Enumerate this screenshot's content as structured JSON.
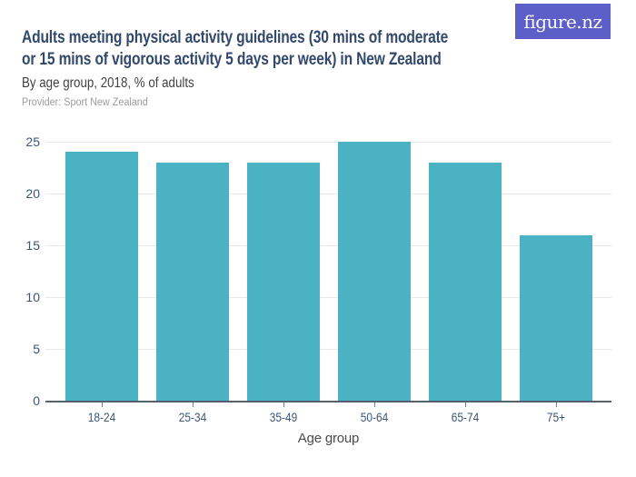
{
  "header": {
    "title_line1": "Adults meeting physical activity guidelines (30 mins of moderate",
    "title_line2": "or 15 mins of vigorous activity 5 days per week) in New Zealand",
    "subtitle": "By age group, 2018, % of adults",
    "provider": "Provider: Sport New Zealand",
    "logo_text": "figure.nz"
  },
  "colors": {
    "background": "#ffffff",
    "accent_bar": "#4bb2c3",
    "logo_background": "#5b5fc7",
    "logo_text": "#ffffff",
    "title_text": "#33496b",
    "subtitle_text": "#424242",
    "provider_text": "#9c9c9c",
    "axis_tick_text": "#3d5577",
    "xaxis_title_text": "#4a4a4a",
    "gridline": "#e9e9ec",
    "axis_line": "#566070",
    "tick_mark": "#767b83"
  },
  "chart_data": {
    "type": "bar",
    "title": "Adults meeting physical activity guidelines (30 mins of moderate or 15 mins of vigorous activity 5 days per week) in New Zealand",
    "subtitle": "By age group, 2018, % of adults",
    "provider": "Provider: Sport New Zealand",
    "categories": [
      "18-24",
      "25-34",
      "35-49",
      "50-64",
      "65-74",
      "75+"
    ],
    "values": [
      24,
      23,
      23,
      25,
      23,
      16
    ],
    "xlabel": "Age group",
    "ylabel": "% of adults",
    "ylim": [
      0,
      25
    ],
    "yticks": [
      0,
      5,
      10,
      15,
      20,
      25
    ],
    "grid": true,
    "legend": false
  }
}
